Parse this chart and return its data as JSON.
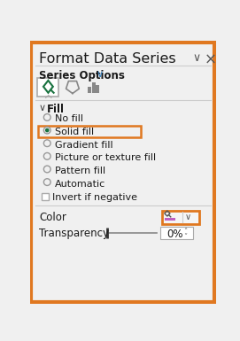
{
  "title": "Format Data Series",
  "bg_color": "#f0f0f0",
  "border_color": "#e07820",
  "border_width": 3,
  "title_fontsize": 13,
  "title_color": "#1a1a1a",
  "series_options_text": "Series Options",
  "fill_text": "Fill",
  "radio_items": [
    "No fill",
    "Solid fill",
    "Gradient fill",
    "Picture or texture fill",
    "Pattern fill",
    "Automatic"
  ],
  "checkbox_item": "Invert if negative",
  "selected_radio": 1,
  "selected_radio_color": "#1a7340",
  "radio_color_unselected": "#888888",
  "color_label": "Color",
  "transparency_label": "Transparency",
  "transparency_value": "0%",
  "highlight_box1_color": "#e07820",
  "highlight_box2_color": "#e07820"
}
